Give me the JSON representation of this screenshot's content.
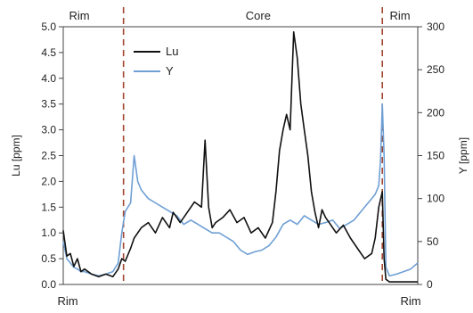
{
  "chart_data": {
    "type": "line",
    "title": "",
    "xlabel": "",
    "ylabel_left": "Lu [ppm]",
    "ylabel_right": "Y [ppm]",
    "ylim_left": [
      0,
      5.0
    ],
    "ylim_right": [
      0,
      300
    ],
    "yticks_left": [
      "0.0",
      "0.5",
      "1.0",
      "1.5",
      "2.0",
      "2.5",
      "3.0",
      "3.5",
      "4.0",
      "4.5",
      "5.0"
    ],
    "yticks_right": [
      "0",
      "50",
      "100",
      "150",
      "200",
      "250",
      "300"
    ],
    "zone_labels_top": [
      "Rim",
      "Core",
      "Rim"
    ],
    "zone_labels_bottom": [
      "Rim",
      "Rim"
    ],
    "boundaries_fraction": [
      0.17,
      0.9
    ],
    "legend_position": "top-center",
    "colors": {
      "Lu": "#111111",
      "Y": "#6f9fd4",
      "boundary": "#a0452e"
    },
    "series": [
      {
        "name": "Lu",
        "axis": "left",
        "x": [
          0,
          0.01,
          0.02,
          0.03,
          0.04,
          0.05,
          0.06,
          0.08,
          0.1,
          0.12,
          0.14,
          0.155,
          0.165,
          0.175,
          0.19,
          0.2,
          0.22,
          0.24,
          0.26,
          0.28,
          0.3,
          0.31,
          0.33,
          0.35,
          0.37,
          0.39,
          0.4,
          0.41,
          0.42,
          0.43,
          0.45,
          0.47,
          0.49,
          0.51,
          0.53,
          0.55,
          0.57,
          0.59,
          0.6,
          0.61,
          0.62,
          0.63,
          0.64,
          0.65,
          0.66,
          0.67,
          0.68,
          0.69,
          0.7,
          0.71,
          0.72,
          0.73,
          0.74,
          0.75,
          0.77,
          0.79,
          0.81,
          0.83,
          0.85,
          0.87,
          0.88,
          0.89,
          0.9,
          0.905,
          0.91,
          0.92,
          0.94,
          0.96,
          0.98,
          1.0
        ],
        "y": [
          1.05,
          0.55,
          0.6,
          0.35,
          0.5,
          0.25,
          0.3,
          0.2,
          0.15,
          0.2,
          0.15,
          0.3,
          0.5,
          0.45,
          0.7,
          0.9,
          1.1,
          1.2,
          1.0,
          1.3,
          1.1,
          1.4,
          1.2,
          1.4,
          1.6,
          1.5,
          2.8,
          1.5,
          1.1,
          1.2,
          1.3,
          1.45,
          1.2,
          1.3,
          1.0,
          1.1,
          0.9,
          1.2,
          1.8,
          2.6,
          3.0,
          3.3,
          3.0,
          4.9,
          4.4,
          3.5,
          3.0,
          2.5,
          1.8,
          1.4,
          1.1,
          1.45,
          1.3,
          1.2,
          1.0,
          1.15,
          0.9,
          0.7,
          0.5,
          0.6,
          0.9,
          1.5,
          1.8,
          0.5,
          0.1,
          0.05,
          0.05,
          0.05,
          0.05,
          0.05
        ]
      },
      {
        "name": "Y",
        "axis": "right",
        "x": [
          0,
          0.01,
          0.02,
          0.03,
          0.04,
          0.05,
          0.06,
          0.08,
          0.1,
          0.12,
          0.14,
          0.155,
          0.165,
          0.175,
          0.19,
          0.2,
          0.21,
          0.22,
          0.24,
          0.26,
          0.28,
          0.3,
          0.32,
          0.34,
          0.36,
          0.38,
          0.4,
          0.42,
          0.44,
          0.46,
          0.48,
          0.5,
          0.52,
          0.54,
          0.56,
          0.58,
          0.6,
          0.62,
          0.64,
          0.66,
          0.68,
          0.7,
          0.72,
          0.74,
          0.76,
          0.78,
          0.8,
          0.82,
          0.84,
          0.86,
          0.87,
          0.88,
          0.89,
          0.895,
          0.9,
          0.905,
          0.91,
          0.92,
          0.94,
          0.96,
          0.98,
          1.0
        ],
        "y": [
          50,
          30,
          25,
          20,
          18,
          15,
          15,
          12,
          10,
          12,
          15,
          25,
          60,
          85,
          95,
          150,
          120,
          110,
          100,
          95,
          90,
          85,
          80,
          70,
          75,
          70,
          65,
          60,
          60,
          55,
          50,
          40,
          35,
          38,
          40,
          45,
          55,
          70,
          75,
          70,
          80,
          75,
          70,
          72,
          75,
          65,
          70,
          75,
          85,
          95,
          100,
          105,
          115,
          145,
          210,
          150,
          20,
          10,
          12,
          15,
          18,
          25
        ]
      }
    ]
  }
}
